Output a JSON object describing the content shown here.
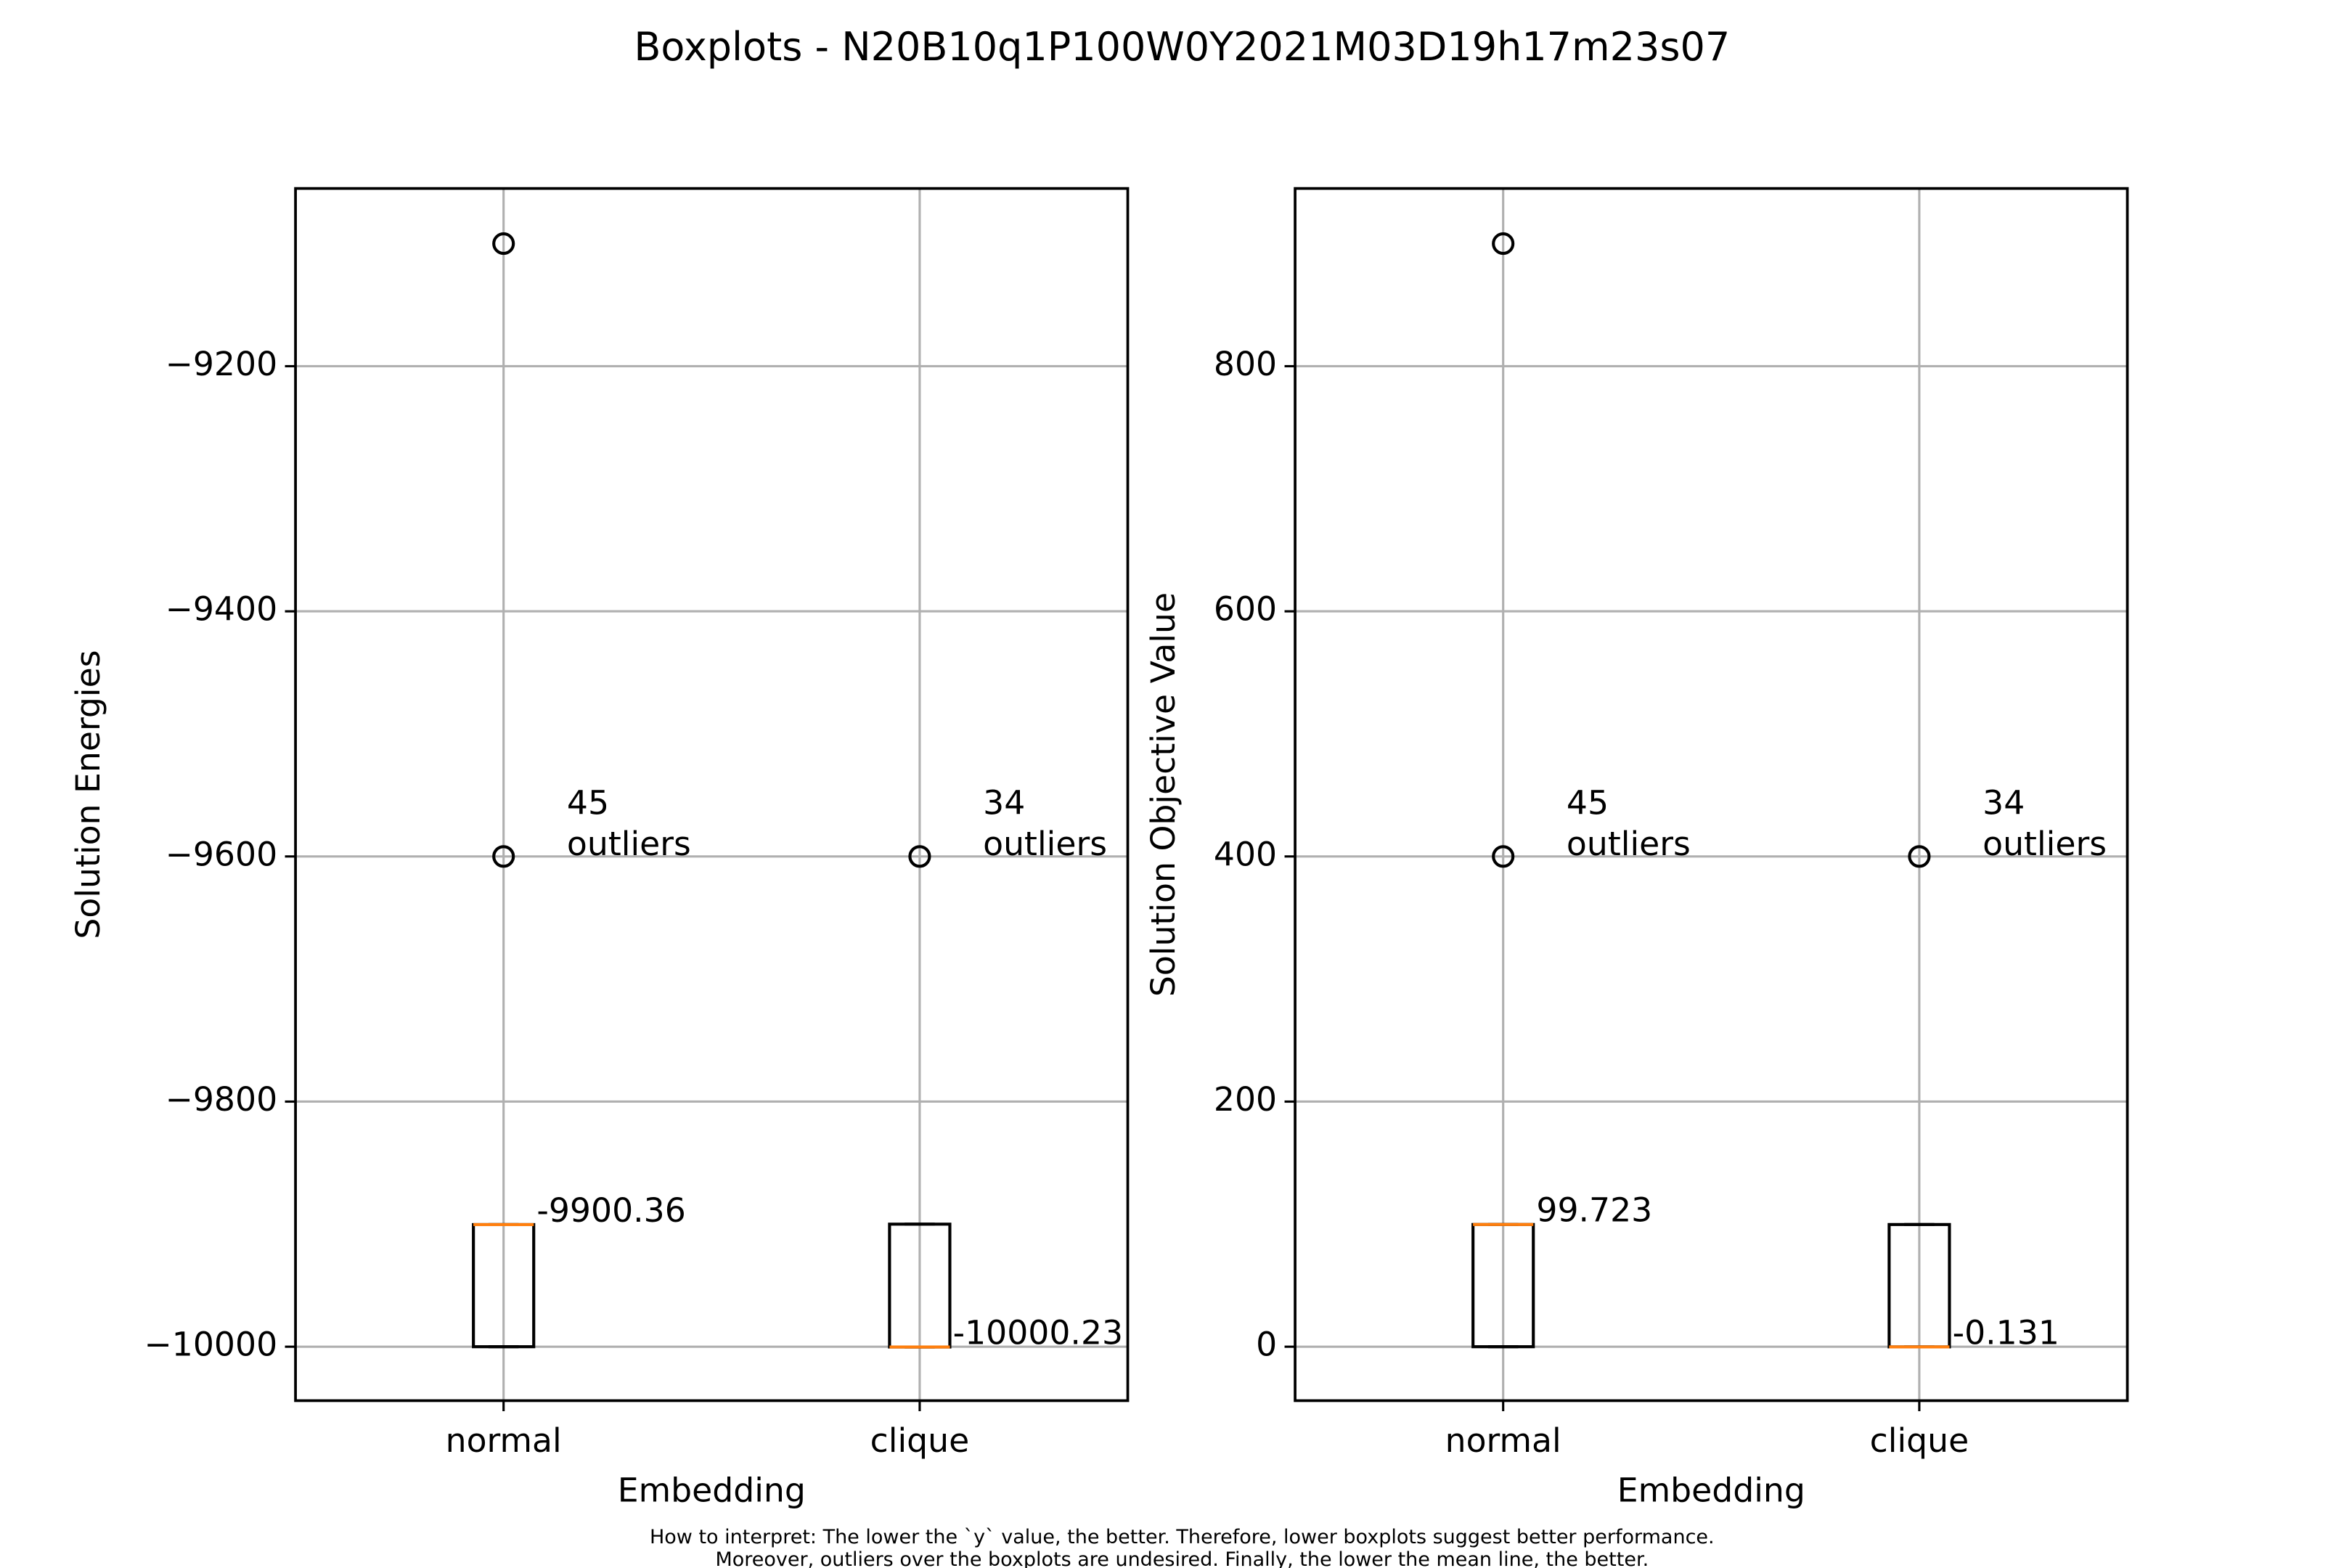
{
  "title": "Boxplots - N20B10q1P100W0Y2021M03D19h17m23s07",
  "footnote": [
    "How to interpret: The lower the `y` value, the better. Therefore, lower boxplots suggest better performance.",
    "Moreover, outliers over the boxplots are undesired. Finally, the lower the mean line, the better."
  ],
  "chart_data": [
    {
      "type": "boxplot",
      "xlabel": "Embedding",
      "ylabel": "Solution Energies",
      "categories": [
        "normal",
        "clique"
      ],
      "boxes": [
        {
          "whislo": -10000,
          "q1": -10000,
          "median": -9900.36,
          "q3": -9900.36,
          "whishi": -9900.36,
          "fliers": [
            -9600,
            -9100
          ],
          "outlier_count": 45,
          "outlier_label": "outliers"
        },
        {
          "whislo": -10000.23,
          "q1": -10000.23,
          "median": -10000.23,
          "q3": -9900,
          "whishi": -9900,
          "fliers": [
            -9600
          ],
          "outlier_count": 34,
          "outlier_label": "outliers"
        }
      ],
      "ylim": [
        -10044,
        -9055
      ],
      "yticks": [
        {
          "value": -10000,
          "label": "−10000"
        },
        {
          "value": -9800,
          "label": "−9800"
        },
        {
          "value": -9600,
          "label": "−9600"
        },
        {
          "value": -9400,
          "label": "−9400"
        },
        {
          "value": -9200,
          "label": "−9200"
        }
      ],
      "grid": true,
      "median_color": "#ff7f0e"
    },
    {
      "type": "boxplot",
      "xlabel": "Embedding",
      "ylabel": "Solution Objective Value",
      "categories": [
        "normal",
        "clique"
      ],
      "boxes": [
        {
          "whislo": 0,
          "q1": 0,
          "median": 99.723,
          "q3": 99.723,
          "whishi": 99.723,
          "fliers": [
            400,
            900
          ],
          "outlier_count": 45,
          "outlier_label": "outliers"
        },
        {
          "whislo": -0.131,
          "q1": -0.131,
          "median": -0.131,
          "q3": 99.7,
          "whishi": 99.7,
          "fliers": [
            400
          ],
          "outlier_count": 34,
          "outlier_label": "outliers"
        }
      ],
      "ylim": [
        -44,
        945
      ],
      "yticks": [
        0,
        200,
        400,
        600,
        800
      ],
      "grid": true,
      "median_color": "#ff7f0e"
    }
  ]
}
